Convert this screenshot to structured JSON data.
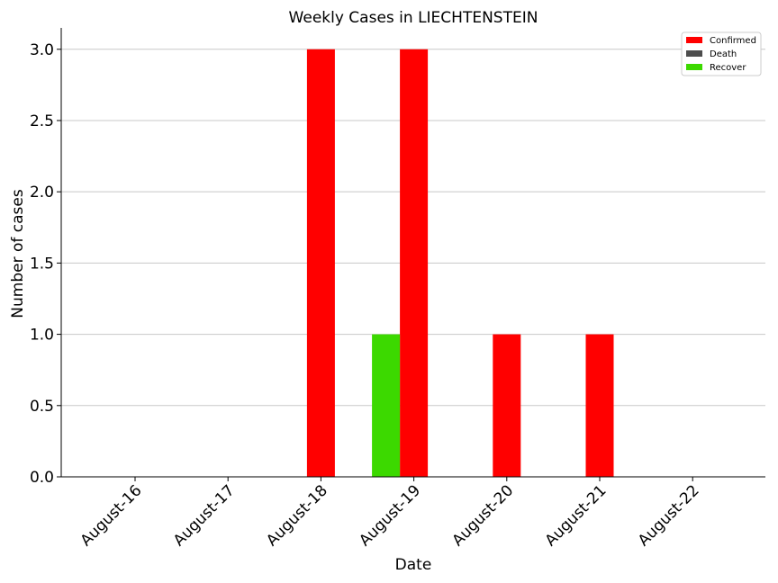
{
  "chart_data": {
    "type": "bar",
    "title": "Weekly Cases in LIECHTENSTEIN",
    "xlabel": "Date",
    "ylabel": "Number of cases",
    "categories": [
      "August-16",
      "August-17",
      "August-18",
      "August-19",
      "August-20",
      "August-21",
      "August-22"
    ],
    "series": [
      {
        "name": "Confirmed",
        "color": "#ff0000",
        "values": [
          0,
          0,
          3,
          3,
          1,
          1,
          0
        ]
      },
      {
        "name": "Death",
        "color": "#4d4d4d",
        "values": [
          0,
          0,
          0,
          0,
          0,
          0,
          0
        ]
      },
      {
        "name": "Recover",
        "color": "#3cd900",
        "values": [
          0,
          0,
          0,
          1,
          0,
          0,
          0
        ]
      }
    ],
    "ylim": [
      0,
      3.15
    ],
    "yticks": [
      "0.0",
      "0.5",
      "1.0",
      "1.5",
      "2.0",
      "2.5",
      "3.0"
    ],
    "grid": "horizontal",
    "legend_position": "top-right"
  }
}
